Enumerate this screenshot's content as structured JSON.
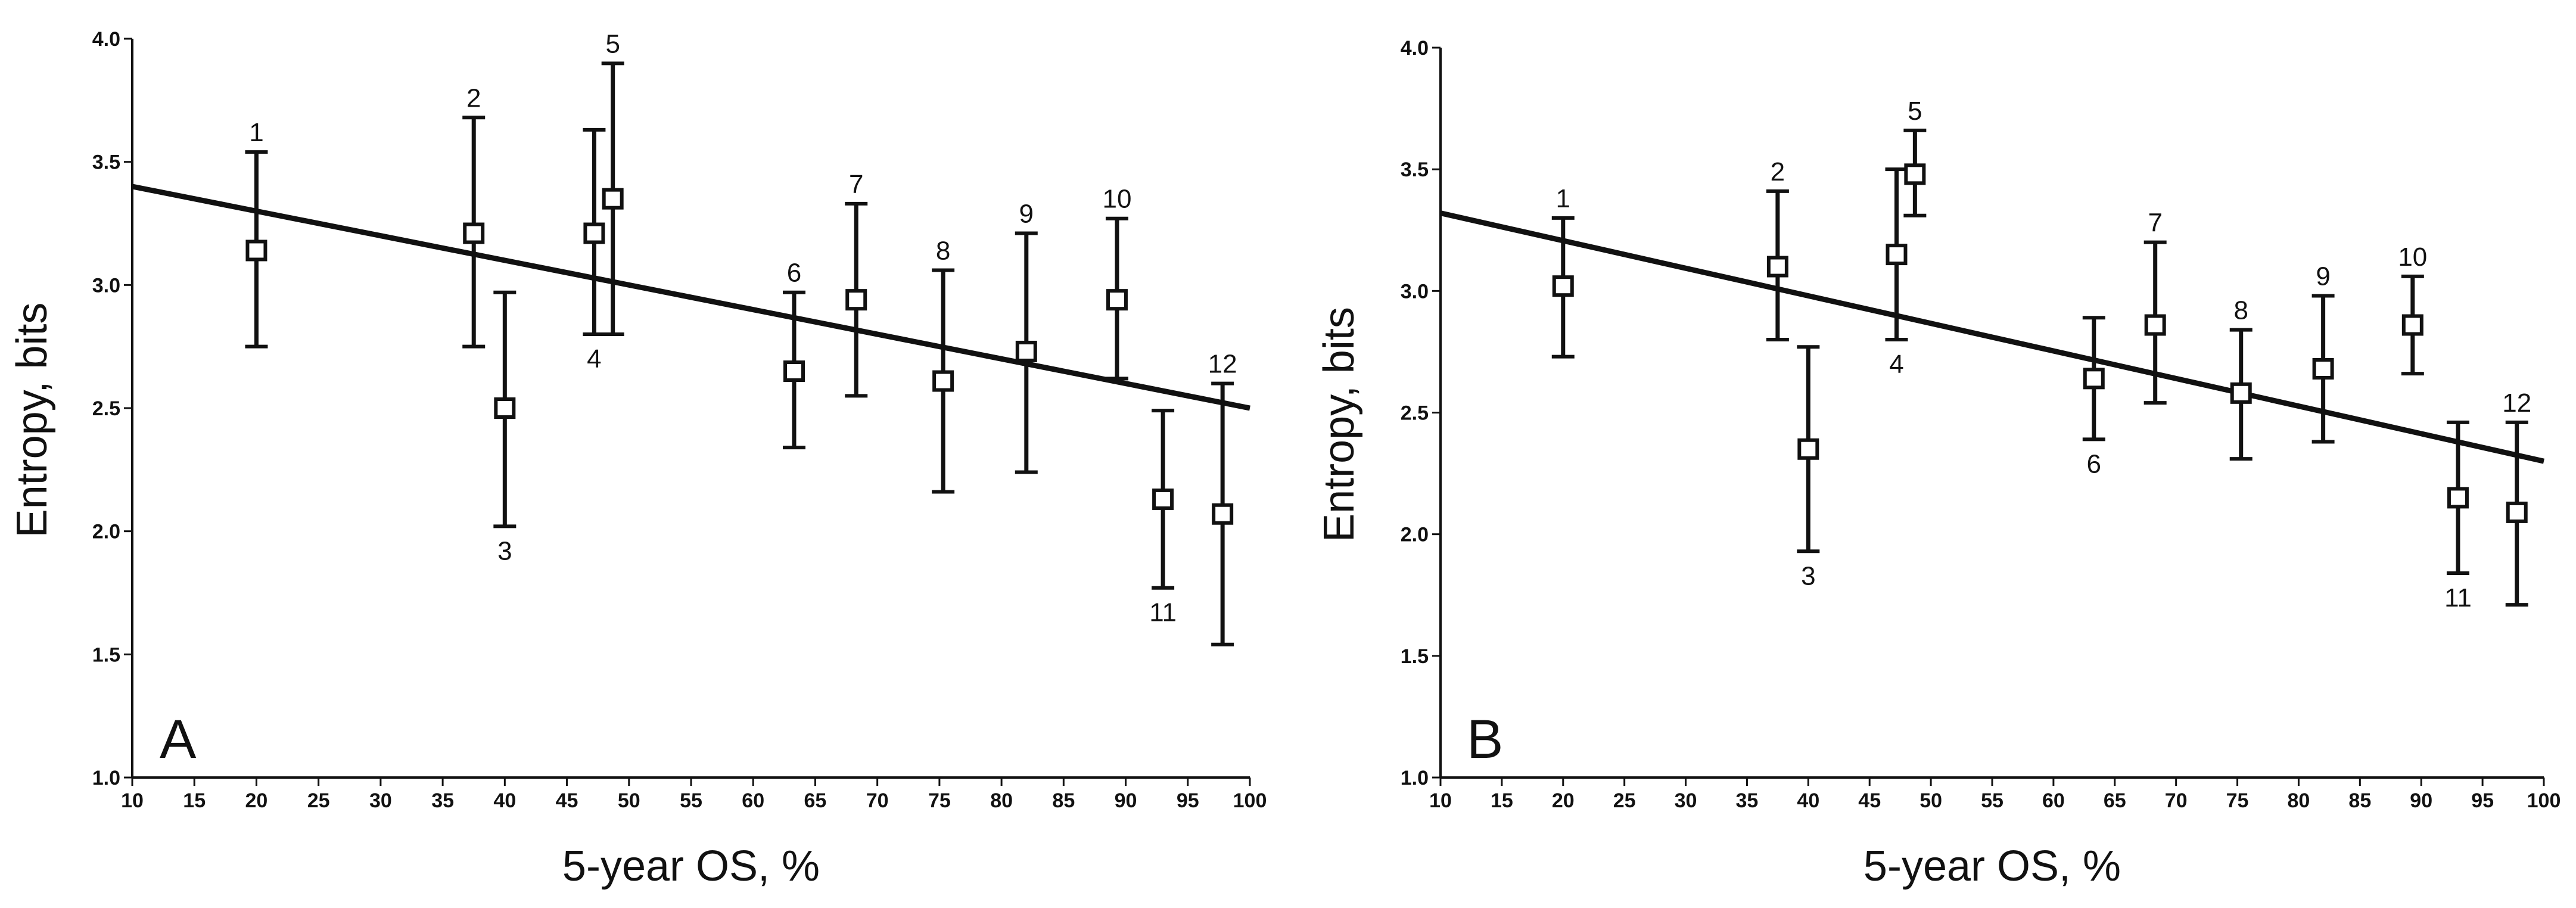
{
  "chart_data": [
    {
      "type": "scatter",
      "panel_label": "A",
      "xlabel": "5-year OS, %",
      "ylabel": "Entropy, bits",
      "xlim": [
        10,
        100
      ],
      "ylim": [
        1.0,
        4.0
      ],
      "xticks": [
        10,
        15,
        20,
        25,
        30,
        35,
        40,
        45,
        50,
        55,
        60,
        65,
        70,
        75,
        80,
        85,
        90,
        95,
        100
      ],
      "yticks": [
        "1.0",
        "1.5",
        "2.0",
        "2.5",
        "3.0",
        "3.5",
        "4.0"
      ],
      "trendline": {
        "x": [
          10,
          100
        ],
        "y": [
          3.4,
          2.5
        ]
      },
      "points": [
        {
          "label": "1",
          "x": 20,
          "y": 3.14,
          "lower": 2.75,
          "upper": 3.54,
          "label_pos": "above"
        },
        {
          "label": "2",
          "x": 37.5,
          "y": 3.21,
          "lower": 2.75,
          "upper": 3.68,
          "label_pos": "above"
        },
        {
          "label": "3",
          "x": 40,
          "y": 2.5,
          "lower": 2.02,
          "upper": 2.97,
          "label_pos": "below"
        },
        {
          "label": "4",
          "x": 47.2,
          "y": 3.21,
          "lower": 2.8,
          "upper": 3.63,
          "label_pos": "below"
        },
        {
          "label": "5",
          "x": 48.7,
          "y": 3.35,
          "lower": 2.8,
          "upper": 3.9,
          "label_pos": "above"
        },
        {
          "label": "6",
          "x": 63.3,
          "y": 2.65,
          "lower": 2.34,
          "upper": 2.97,
          "label_pos": "above"
        },
        {
          "label": "7",
          "x": 68.3,
          "y": 2.94,
          "lower": 2.55,
          "upper": 3.33,
          "label_pos": "above"
        },
        {
          "label": "8",
          "x": 75.3,
          "y": 2.61,
          "lower": 2.16,
          "upper": 3.06,
          "label_pos": "above"
        },
        {
          "label": "9",
          "x": 82,
          "y": 2.73,
          "lower": 2.24,
          "upper": 3.21,
          "label_pos": "above"
        },
        {
          "label": "10",
          "x": 89.3,
          "y": 2.94,
          "lower": 2.62,
          "upper": 3.27,
          "label_pos": "above"
        },
        {
          "label": "11",
          "x": 93,
          "y": 2.13,
          "lower": 1.77,
          "upper": 2.49,
          "label_pos": "below"
        },
        {
          "label": "12",
          "x": 97.8,
          "y": 2.07,
          "lower": 1.54,
          "upper": 2.6,
          "label_pos": "above"
        }
      ]
    },
    {
      "type": "scatter",
      "panel_label": "B",
      "xlabel": "5-year OS, %",
      "ylabel": "Entropy, bits",
      "xlim": [
        10,
        100
      ],
      "ylim": [
        1.0,
        4.0
      ],
      "xticks": [
        10,
        15,
        20,
        25,
        30,
        35,
        40,
        45,
        50,
        55,
        60,
        65,
        70,
        75,
        80,
        85,
        90,
        95,
        100
      ],
      "yticks": [
        "1.0",
        "1.5",
        "2.0",
        "2.5",
        "3.0",
        "3.5",
        "4.0"
      ],
      "trendline": {
        "x": [
          10,
          100
        ],
        "y": [
          3.32,
          2.3
        ]
      },
      "points": [
        {
          "label": "1",
          "x": 20,
          "y": 3.02,
          "lower": 2.73,
          "upper": 3.3,
          "label_pos": "above"
        },
        {
          "label": "2",
          "x": 37.5,
          "y": 3.1,
          "lower": 2.8,
          "upper": 3.41,
          "label_pos": "above"
        },
        {
          "label": "3",
          "x": 40,
          "y": 2.35,
          "lower": 1.93,
          "upper": 2.77,
          "label_pos": "below"
        },
        {
          "label": "4",
          "x": 47.2,
          "y": 3.15,
          "lower": 2.8,
          "upper": 3.5,
          "label_pos": "below"
        },
        {
          "label": "5",
          "x": 48.7,
          "y": 3.48,
          "lower": 3.31,
          "upper": 3.66,
          "label_pos": "above"
        },
        {
          "label": "6",
          "x": 63.3,
          "y": 2.64,
          "lower": 2.39,
          "upper": 2.89,
          "label_pos": "below"
        },
        {
          "label": "7",
          "x": 68.3,
          "y": 2.86,
          "lower": 2.54,
          "upper": 3.2,
          "label_pos": "above"
        },
        {
          "label": "8",
          "x": 75.3,
          "y": 2.58,
          "lower": 2.31,
          "upper": 2.84,
          "label_pos": "above"
        },
        {
          "label": "9",
          "x": 82,
          "y": 2.68,
          "lower": 2.38,
          "upper": 2.98,
          "label_pos": "above"
        },
        {
          "label": "10",
          "x": 89.3,
          "y": 2.86,
          "lower": 2.66,
          "upper": 3.06,
          "label_pos": "above"
        },
        {
          "label": "11",
          "x": 93,
          "y": 2.15,
          "lower": 1.84,
          "upper": 2.46,
          "label_pos": "below"
        },
        {
          "label": "12",
          "x": 97.8,
          "y": 2.09,
          "lower": 1.71,
          "upper": 2.46,
          "label_pos": "above"
        }
      ]
    }
  ]
}
